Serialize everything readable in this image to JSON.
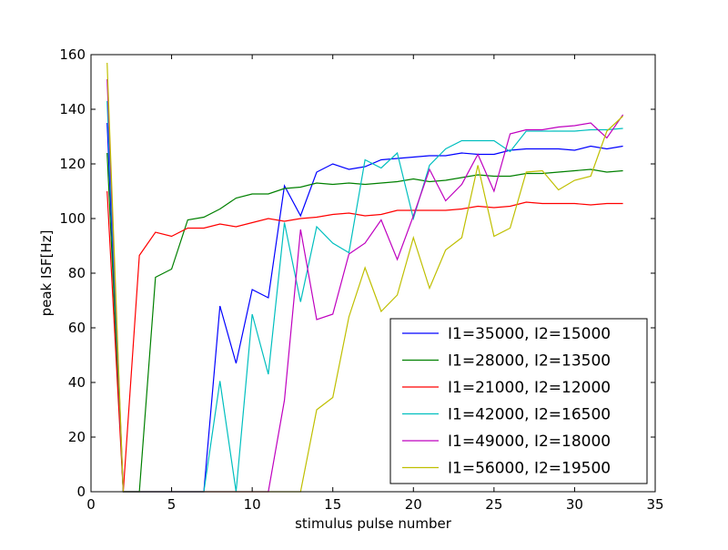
{
  "chart_data": {
    "type": "line",
    "title": "",
    "xlabel": "stimulus pulse number",
    "ylabel": "peak ISF[Hz]",
    "xlim": [
      0,
      35
    ],
    "ylim": [
      0,
      160
    ],
    "xticks": [
      0,
      5,
      10,
      15,
      20,
      25,
      30,
      35
    ],
    "yticks": [
      0,
      20,
      40,
      60,
      80,
      100,
      120,
      140,
      160
    ],
    "grid": false,
    "legend_position": "lower-right",
    "x": [
      1,
      2,
      3,
      4,
      5,
      6,
      7,
      8,
      9,
      10,
      11,
      12,
      13,
      14,
      15,
      16,
      17,
      18,
      19,
      20,
      21,
      22,
      23,
      24,
      25,
      26,
      27,
      28,
      29,
      30,
      31,
      32,
      33
    ],
    "series": [
      {
        "name": "I1=35000, I2=15000",
        "color": "#0000ff",
        "values": [
          135,
          0,
          0,
          0,
          0,
          0,
          0,
          68,
          47,
          74,
          71,
          112,
          101,
          117,
          120,
          118,
          119,
          121.5,
          122,
          122.5,
          123,
          123,
          124,
          123.5,
          123.5,
          125,
          125.5,
          125.5,
          125.5,
          125,
          126.5,
          125.5,
          126.5
        ]
      },
      {
        "name": "I1=28000, I2=13500",
        "color": "#008000",
        "values": [
          124,
          0,
          0,
          78.5,
          81.5,
          99.5,
          100.5,
          103.5,
          107.5,
          109,
          109,
          111,
          111.5,
          113,
          112.5,
          113,
          112.5,
          113,
          113.5,
          114.5,
          113.5,
          114,
          115,
          116,
          115.5,
          115.5,
          116.5,
          116.5,
          117,
          117.5,
          118,
          117,
          117.5
        ]
      },
      {
        "name": "I1=21000, I2=12000",
        "color": "#ff0000",
        "values": [
          110,
          0,
          86.5,
          95,
          93.5,
          96.5,
          96.5,
          98,
          97,
          98.5,
          100,
          99,
          100,
          100.5,
          101.5,
          102,
          101,
          101.5,
          103,
          103,
          103,
          103,
          103.5,
          104.5,
          104,
          104.5,
          106,
          105.5,
          105.5,
          105.5,
          105,
          105.5,
          105.5
        ]
      },
      {
        "name": "I1=42000, I2=16500",
        "color": "#00bfbf",
        "values": [
          143,
          0,
          0,
          0,
          0,
          0,
          0,
          40.5,
          0,
          65,
          43,
          98.5,
          69.5,
          97,
          91,
          87.5,
          121.5,
          118.5,
          124,
          100,
          119.5,
          125.5,
          128.5,
          128.5,
          128.5,
          124.5,
          132,
          132,
          132,
          132,
          132.5,
          132.5,
          133
        ]
      },
      {
        "name": "I1=49000, I2=18000",
        "color": "#bf00bf",
        "values": [
          151,
          0,
          0,
          0,
          0,
          0,
          0,
          0,
          0,
          0,
          0,
          33.5,
          96,
          63,
          65,
          87,
          91,
          99.5,
          85,
          101,
          118,
          106.5,
          112.5,
          123.5,
          110,
          131,
          132.5,
          132.5,
          133.5,
          134,
          135,
          129.5,
          138
        ]
      },
      {
        "name": "I1=56000, I2=19500",
        "color": "#bfbf00",
        "values": [
          157,
          0,
          0,
          0,
          0,
          0,
          0,
          0,
          0,
          0,
          0,
          0,
          0,
          30,
          34.5,
          64,
          82,
          66,
          72,
          93,
          74.5,
          88.5,
          93,
          119.5,
          93.5,
          96.5,
          117,
          117.5,
          110.5,
          114,
          115.5,
          132,
          137.5
        ]
      }
    ]
  }
}
